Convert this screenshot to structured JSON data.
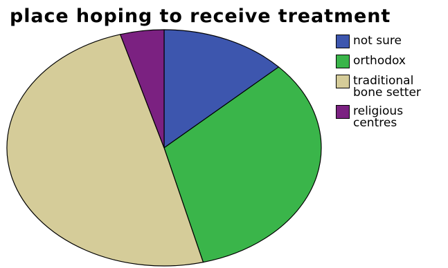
{
  "chart_data": {
    "type": "pie",
    "title": "place hoping to receive treatment",
    "start_angle_deg": 90,
    "direction": "clockwise",
    "legend_position": "top-right",
    "slices": [
      {
        "label": "not sure",
        "value": 13.0,
        "color": "#3d56ae"
      },
      {
        "label": "orthodox",
        "value": 33.0,
        "color": "#3ab54a"
      },
      {
        "label": "traditional bone setter",
        "value": 49.5,
        "color": "#d5cc99"
      },
      {
        "label": "religious centres",
        "value": 4.5,
        "color": "#7b2181"
      }
    ]
  }
}
